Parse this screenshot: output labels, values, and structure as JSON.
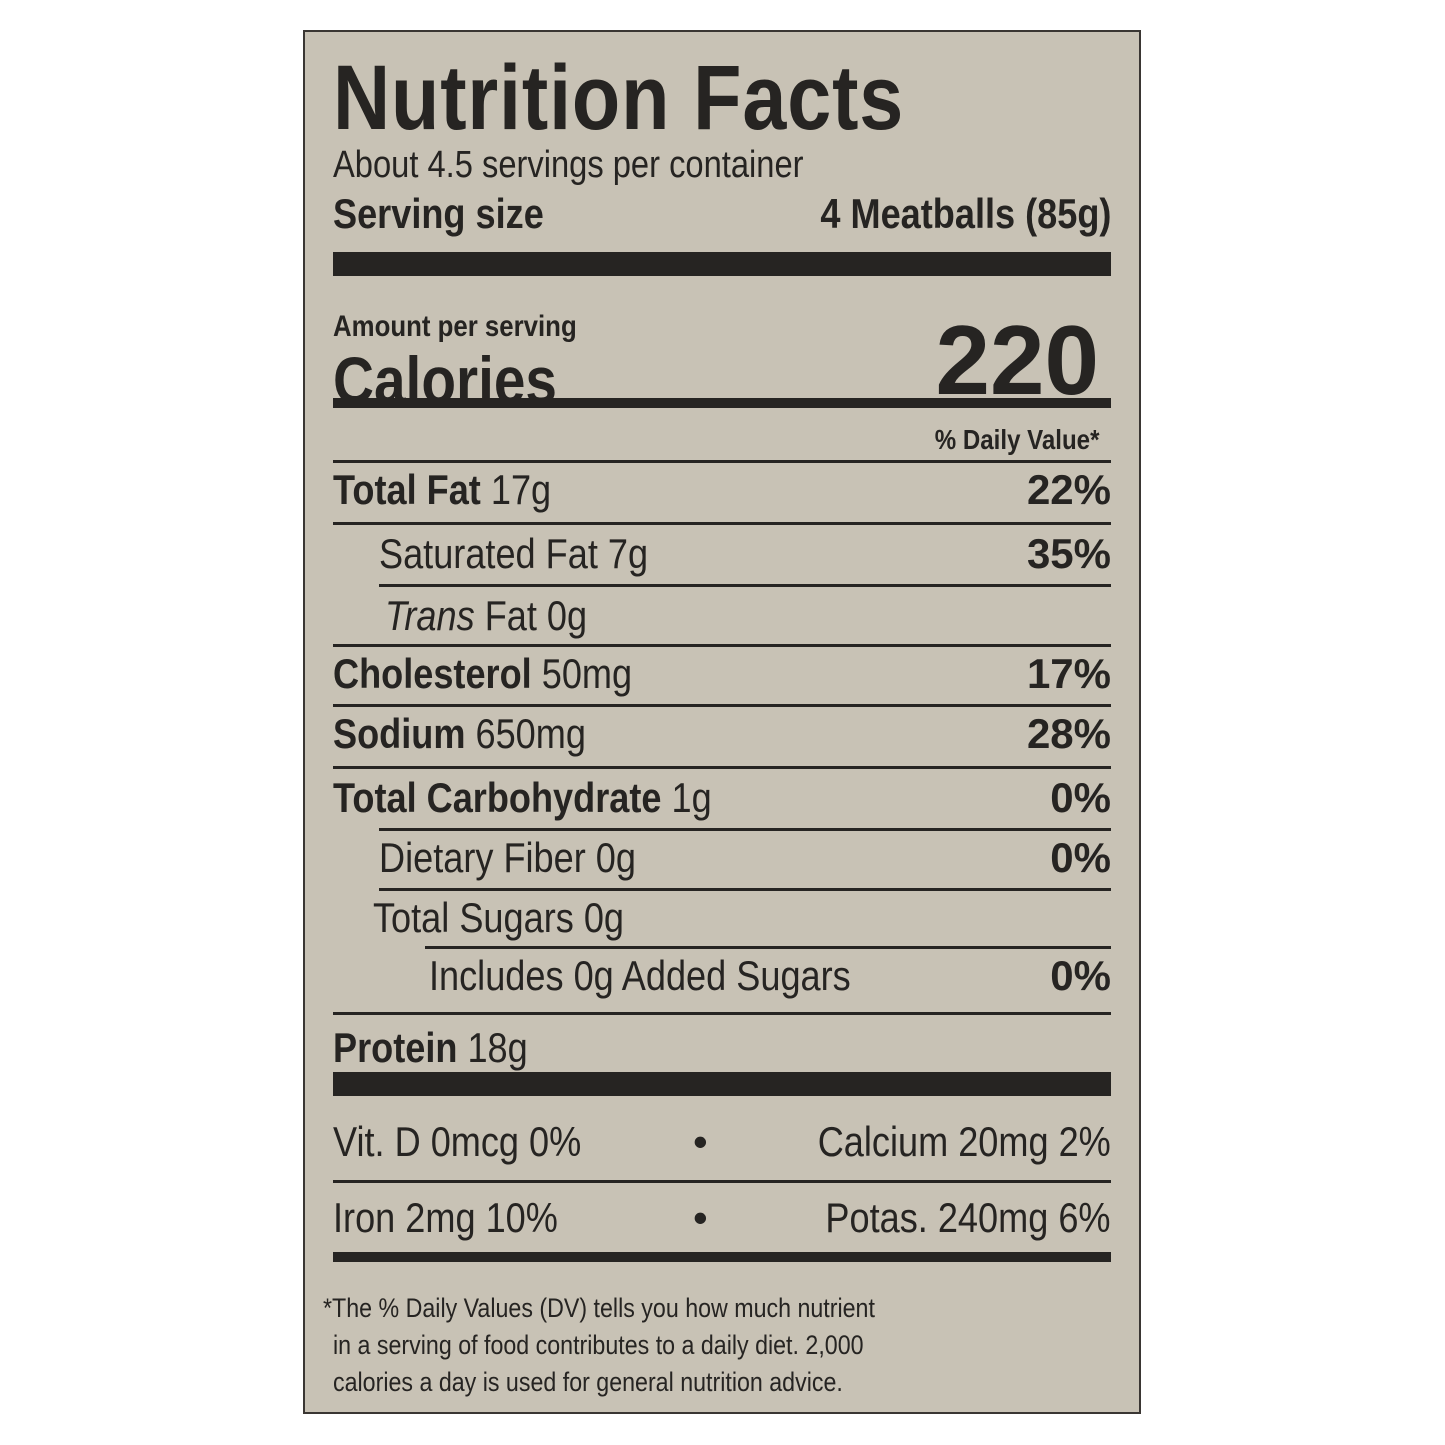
{
  "title": "Nutrition Facts",
  "servings_per_container": "About 4.5 servings per container",
  "serving_size": {
    "label": "Serving size",
    "value": "4 Meatballs (85g)"
  },
  "amount_per_serving": "Amount per serving",
  "calories": {
    "label": "Calories",
    "value": "220"
  },
  "daily_value_header": "% Daily Value*",
  "nutrients": [
    {
      "name": "Total Fat",
      "amount": "17g",
      "dv": "22%"
    },
    {
      "name": "Saturated Fat",
      "amount": "7g",
      "dv": "35%"
    },
    {
      "name_italic": "Trans",
      "name": "Fat",
      "amount": "0g",
      "dv": ""
    },
    {
      "name": "Cholesterol",
      "amount": "50mg",
      "dv": "17%"
    },
    {
      "name": "Sodium",
      "amount": "650mg",
      "dv": "28%"
    },
    {
      "name": "Total Carbohydrate",
      "amount": "1g",
      "dv": "0%"
    },
    {
      "name": "Dietary Fiber",
      "amount": "0g",
      "dv": "0%"
    },
    {
      "name": "Total Sugars",
      "amount": "0g",
      "dv": ""
    },
    {
      "name": "Includes 0g Added Sugars",
      "amount": "",
      "dv": "0%"
    },
    {
      "name": "Protein",
      "amount": "18g",
      "dv": ""
    }
  ],
  "micros": [
    {
      "left": "Vit. D 0mcg 0%",
      "right": "Calcium 20mg 2%"
    },
    {
      "left": "Iron 2mg 10%",
      "right": "Potas. 240mg 6%"
    }
  ],
  "bullet": "•",
  "footnote": [
    "*The % Daily Values (DV) tells you how much nutrient",
    "in a serving of food contributes to a daily diet. 2,000",
    "calories a day is used for general nutrition advice."
  ],
  "colors": {
    "panel": "#c8c2b5",
    "ink": "#262422"
  }
}
